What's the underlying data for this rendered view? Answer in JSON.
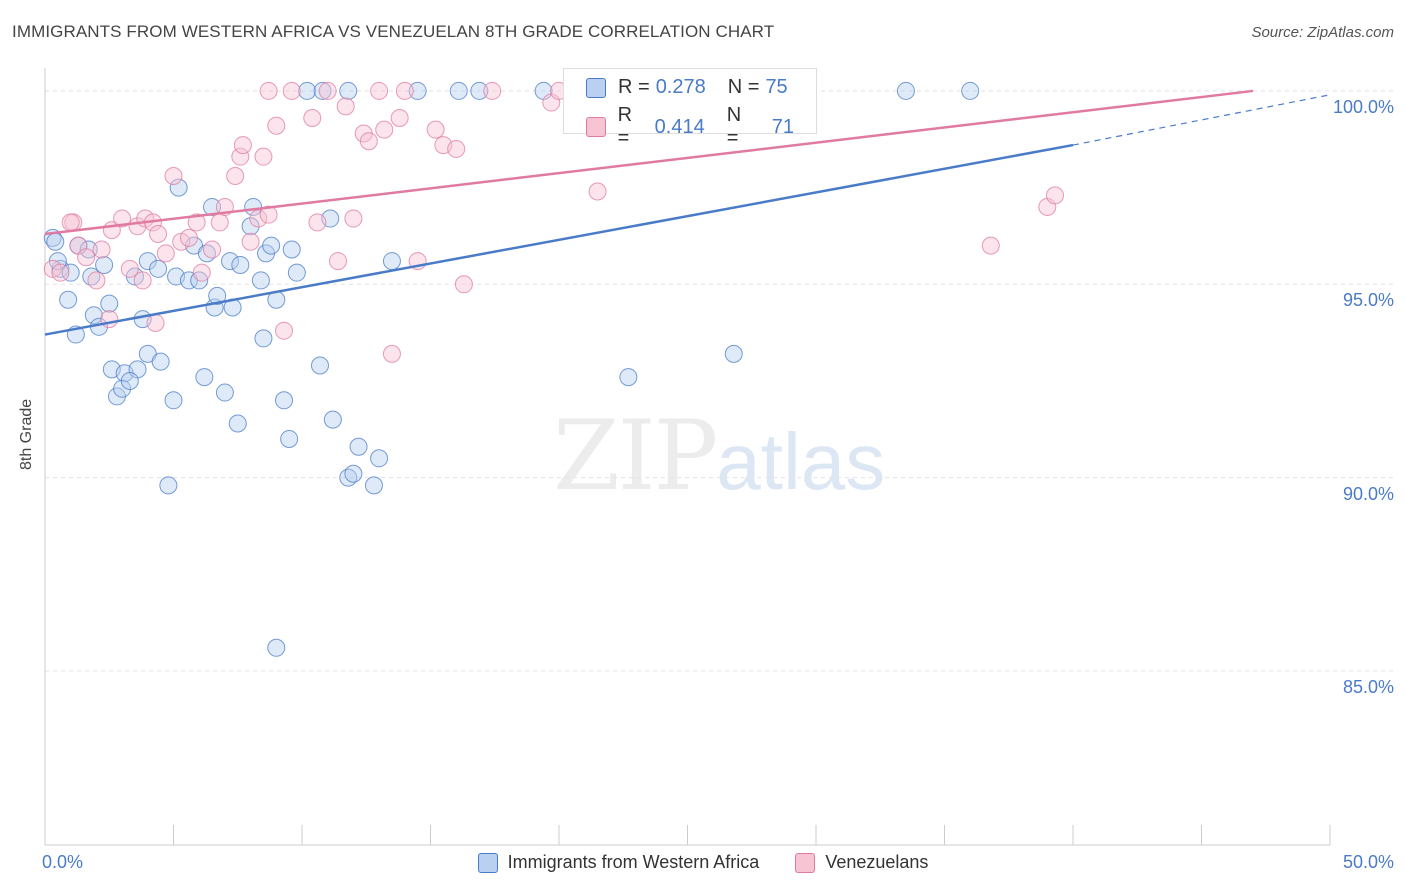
{
  "header": {
    "title": "IMMIGRANTS FROM WESTERN AFRICA VS VENEZUELAN 8TH GRADE CORRELATION CHART",
    "source": "Source: ZipAtlas.com"
  },
  "legend_stats": {
    "row1": {
      "r_label": "R =",
      "r_value": "0.278",
      "n_label": "N =",
      "n_value": "75"
    },
    "row2": {
      "r_label": "R =",
      "r_value": "0.414",
      "n_label": "N =",
      "n_value": "71"
    }
  },
  "watermark": {
    "zip": "ZIP",
    "atlas": "atlas"
  },
  "colors": {
    "blue": "#4a7bc8",
    "blue_fill": "#b9d0f0",
    "pink": "#e07aa0",
    "pink_fill": "#f7c4d4"
  },
  "chart_data": {
    "type": "scatter",
    "title": "IMMIGRANTS FROM WESTERN AFRICA VS VENEZUELAN 8TH GRADE CORRELATION CHART",
    "xlabel": "",
    "ylabel": "8th Grade",
    "xlim": [
      0,
      50
    ],
    "ylim": [
      80.5,
      100.8
    ],
    "x_tick_labels": [
      "0.0%",
      "50.0%"
    ],
    "y_ticks": [
      85,
      90,
      95,
      100
    ],
    "y_tick_labels": [
      "85.0%",
      "90.0%",
      "95.0%",
      "100.0%"
    ],
    "grid": true,
    "legend_position": "bottom",
    "series": [
      {
        "name": "Immigrants from Western Africa",
        "color": "#4a7bc8",
        "trend": {
          "x": [
            0,
            40
          ],
          "y": [
            93.7,
            98.6
          ],
          "dashed_to": [
            50,
            99.9
          ]
        },
        "points": [
          [
            0.3,
            96.2
          ],
          [
            0.4,
            96.1
          ],
          [
            0.6,
            95.4
          ],
          [
            1.0,
            95.3
          ],
          [
            1.3,
            96.0
          ],
          [
            1.7,
            95.9
          ],
          [
            1.8,
            95.2
          ],
          [
            0.9,
            94.6
          ],
          [
            1.9,
            94.2
          ],
          [
            2.1,
            93.9
          ],
          [
            2.5,
            94.5
          ],
          [
            1.2,
            93.7
          ],
          [
            2.6,
            92.8
          ],
          [
            3.1,
            92.7
          ],
          [
            3.6,
            92.8
          ],
          [
            2.8,
            92.1
          ],
          [
            3.0,
            92.3
          ],
          [
            3.3,
            92.5
          ],
          [
            4.0,
            93.2
          ],
          [
            4.5,
            93.0
          ],
          [
            3.5,
            95.2
          ],
          [
            4.0,
            95.6
          ],
          [
            4.4,
            95.4
          ],
          [
            5.1,
            95.2
          ],
          [
            5.6,
            95.1
          ],
          [
            5.8,
            96.0
          ],
          [
            6.0,
            95.1
          ],
          [
            6.3,
            95.8
          ],
          [
            6.5,
            97.0
          ],
          [
            6.6,
            94.4
          ],
          [
            6.7,
            94.7
          ],
          [
            7.3,
            94.4
          ],
          [
            7.2,
            95.6
          ],
          [
            7.6,
            95.5
          ],
          [
            8.1,
            97.0
          ],
          [
            8.0,
            96.5
          ],
          [
            8.4,
            95.1
          ],
          [
            8.6,
            95.8
          ],
          [
            8.8,
            96.0
          ],
          [
            9.0,
            94.6
          ],
          [
            8.5,
            93.6
          ],
          [
            5.2,
            97.5
          ],
          [
            5.0,
            92.0
          ],
          [
            6.2,
            92.6
          ],
          [
            7.0,
            92.2
          ],
          [
            7.5,
            91.4
          ],
          [
            9.3,
            92.0
          ],
          [
            9.5,
            91.0
          ],
          [
            9.6,
            95.9
          ],
          [
            9.8,
            95.3
          ],
          [
            10.7,
            92.9
          ],
          [
            11.1,
            96.7
          ],
          [
            11.2,
            91.5
          ],
          [
            11.8,
            90.0
          ],
          [
            12.0,
            90.1
          ],
          [
            12.2,
            90.8
          ],
          [
            12.8,
            89.8
          ],
          [
            13.0,
            90.5
          ],
          [
            13.5,
            95.6
          ],
          [
            4.8,
            89.8
          ],
          [
            9.0,
            85.6
          ],
          [
            10.2,
            100.0
          ],
          [
            10.8,
            100.0
          ],
          [
            11.8,
            100.0
          ],
          [
            14.5,
            100.0
          ],
          [
            16.1,
            100.0
          ],
          [
            16.9,
            100.0
          ],
          [
            19.4,
            100.0
          ],
          [
            22.7,
            92.6
          ],
          [
            26.8,
            93.2
          ],
          [
            33.5,
            100.0
          ],
          [
            36.0,
            100.0
          ],
          [
            3.8,
            94.1
          ],
          [
            2.3,
            95.5
          ],
          [
            0.5,
            95.6
          ]
        ]
      },
      {
        "name": "Venezuelans",
        "color": "#e07aa0",
        "trend": {
          "x": [
            0,
            47
          ],
          "y": [
            96.3,
            100.0
          ]
        },
        "points": [
          [
            0.3,
            95.4
          ],
          [
            0.6,
            95.3
          ],
          [
            1.1,
            96.6
          ],
          [
            1.3,
            96.0
          ],
          [
            1.6,
            95.7
          ],
          [
            2.0,
            95.1
          ],
          [
            2.2,
            95.9
          ],
          [
            2.6,
            96.4
          ],
          [
            3.0,
            96.7
          ],
          [
            3.3,
            95.4
          ],
          [
            3.6,
            96.5
          ],
          [
            3.9,
            96.7
          ],
          [
            4.2,
            96.6
          ],
          [
            4.4,
            96.3
          ],
          [
            4.7,
            95.8
          ],
          [
            5.0,
            97.8
          ],
          [
            5.3,
            96.1
          ],
          [
            5.6,
            96.2
          ],
          [
            5.9,
            96.6
          ],
          [
            6.1,
            95.3
          ],
          [
            6.5,
            95.9
          ],
          [
            6.8,
            96.6
          ],
          [
            7.0,
            97.0
          ],
          [
            7.4,
            97.8
          ],
          [
            7.6,
            98.3
          ],
          [
            7.7,
            98.6
          ],
          [
            8.0,
            96.1
          ],
          [
            8.3,
            96.7
          ],
          [
            8.5,
            98.3
          ],
          [
            8.7,
            96.8
          ],
          [
            9.0,
            99.1
          ],
          [
            9.3,
            93.8
          ],
          [
            8.7,
            100.0
          ],
          [
            9.6,
            100.0
          ],
          [
            10.4,
            99.3
          ],
          [
            10.6,
            96.6
          ],
          [
            11.0,
            100.0
          ],
          [
            11.4,
            95.6
          ],
          [
            11.7,
            99.6
          ],
          [
            12.0,
            96.7
          ],
          [
            12.4,
            98.9
          ],
          [
            12.6,
            98.7
          ],
          [
            13.0,
            100.0
          ],
          [
            13.2,
            99.0
          ],
          [
            13.8,
            99.3
          ],
          [
            14.0,
            100.0
          ],
          [
            14.5,
            95.6
          ],
          [
            15.2,
            99.0
          ],
          [
            15.5,
            98.6
          ],
          [
            16.0,
            98.5
          ],
          [
            16.3,
            95.0
          ],
          [
            17.4,
            100.0
          ],
          [
            19.7,
            99.7
          ],
          [
            20.0,
            100.0
          ],
          [
            21.0,
            100.0
          ],
          [
            21.5,
            100.0
          ],
          [
            21.0,
            99.5
          ],
          [
            21.0,
            99.7
          ],
          [
            21.0,
            100.0
          ],
          [
            21.0,
            100.0
          ],
          [
            21.0,
            100.0
          ],
          [
            22.5,
            100.0
          ],
          [
            1.0,
            96.6
          ],
          [
            2.5,
            94.1
          ],
          [
            3.8,
            95.1
          ],
          [
            4.3,
            94.0
          ],
          [
            13.5,
            93.2
          ],
          [
            21.5,
            97.4
          ],
          [
            36.8,
            96.0
          ],
          [
            39.0,
            97.0
          ],
          [
            39.3,
            97.3
          ]
        ]
      }
    ]
  }
}
